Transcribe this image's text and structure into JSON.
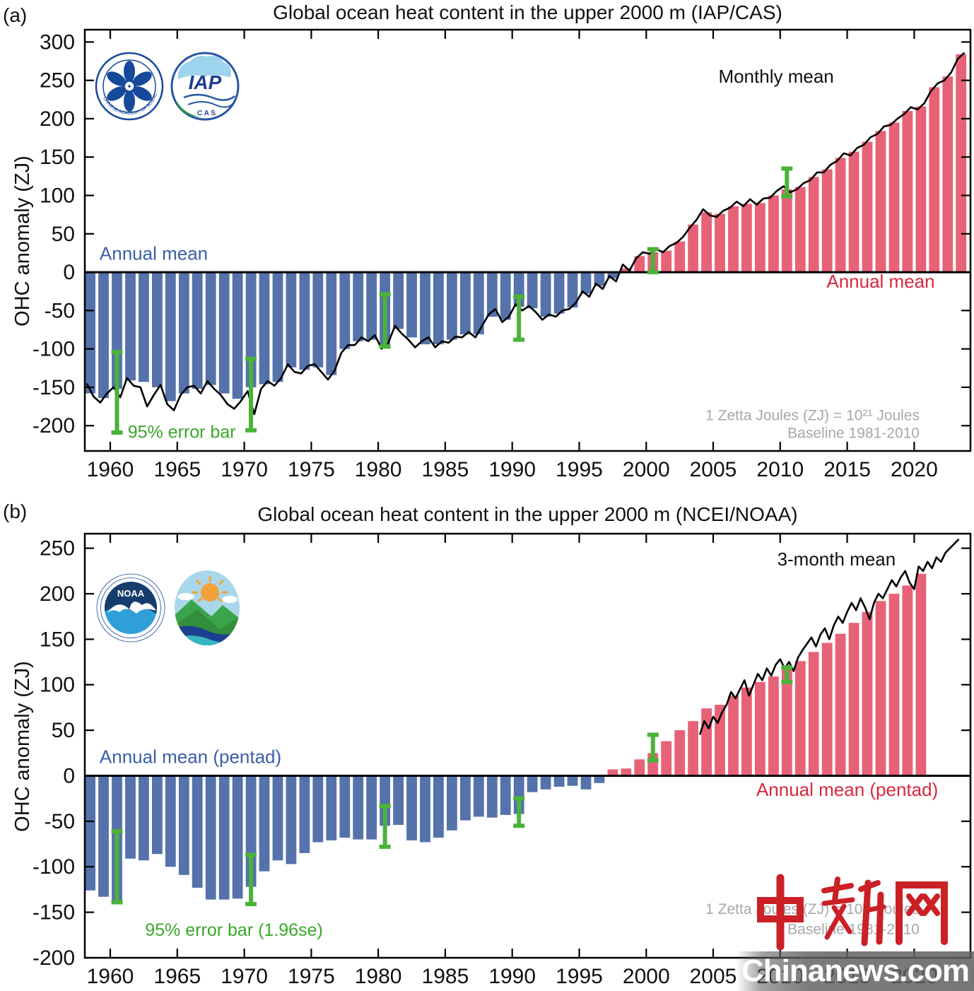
{
  "watermark": {
    "logo_text": "中新网",
    "site_text": "Chinanews.com",
    "logo_color": "#cb2026",
    "site_text_color": "#ffffff"
  },
  "chart_data": [
    {
      "type": "bar",
      "panel_label": "(a)",
      "title": "Global ocean heat content in the upper 2000 m (IAP/CAS)",
      "ylabel": "OHC anomaly (ZJ)",
      "xlabel": "",
      "xlim": [
        1958.1,
        2024.2
      ],
      "ylim": [
        -233,
        316
      ],
      "grid": false,
      "legend_position": "none",
      "yticks": [
        -200,
        -150,
        -100,
        -50,
        0,
        50,
        100,
        150,
        200,
        250,
        300
      ],
      "xticks": [
        1960,
        1965,
        1970,
        1975,
        1980,
        1985,
        1990,
        1995,
        2000,
        2005,
        2010,
        2015,
        2020
      ],
      "bar_series": {
        "name": "Annual mean",
        "start_year": 1958,
        "negative_color": "#5572ab",
        "positive_color": "#e76277",
        "values": [
          -158,
          -164,
          -152,
          -141,
          -143,
          -150,
          -168,
          -158,
          -152,
          -147,
          -158,
          -165,
          -150,
          -146,
          -143,
          -124,
          -127,
          -124,
          -134,
          -100,
          -90,
          -88,
          -97,
          -74,
          -85,
          -94,
          -94,
          -88,
          -81,
          -81,
          -58,
          -62,
          -45,
          -47,
          -58,
          -54,
          -46,
          -28,
          -18,
          -8,
          5,
          21,
          26,
          28,
          40,
          62,
          78,
          76,
          86,
          89,
          90,
          100,
          108,
          111,
          124,
          134,
          149,
          157,
          170,
          184,
          195,
          210,
          216,
          241,
          255,
          284
        ]
      },
      "line_series": {
        "name": "Monthly mean",
        "color": "#000000",
        "x_start": 1958.25,
        "x_step": 0.5,
        "values": [
          -145,
          -162,
          -170,
          -158,
          -150,
          -163,
          -138,
          -148,
          -150,
          -175,
          -160,
          -147,
          -172,
          -180,
          -160,
          -150,
          -148,
          -158,
          -142,
          -152,
          -160,
          -172,
          -178,
          -168,
          -155,
          -185,
          -152,
          -142,
          -148,
          -138,
          -120,
          -130,
          -132,
          -122,
          -120,
          -130,
          -140,
          -128,
          -105,
          -95,
          -95,
          -85,
          -90,
          -82,
          -100,
          -92,
          -70,
          -80,
          -88,
          -98,
          -90,
          -85,
          -98,
          -90,
          -92,
          -84,
          -85,
          -78,
          -85,
          -70,
          -55,
          -48,
          -65,
          -58,
          -42,
          -50,
          -44,
          -52,
          -62,
          -55,
          -58,
          -50,
          -48,
          -40,
          -25,
          -32,
          -15,
          -22,
          -5,
          -12,
          10,
          2,
          18,
          26,
          24,
          30,
          26,
          34,
          38,
          46,
          58,
          68,
          82,
          74,
          72,
          80,
          84,
          92,
          86,
          95,
          88,
          96,
          97,
          106,
          112,
          104,
          108,
          116,
          120,
          130,
          130,
          140,
          145,
          155,
          152,
          162,
          166,
          176,
          180,
          190,
          192,
          200,
          206,
          215,
          212,
          220,
          236,
          246,
          250,
          260,
          278,
          286
        ]
      },
      "error_bars": {
        "label": "95% error bar",
        "color": "#4bb23a",
        "points": [
          {
            "x": 1960.5,
            "y0": -209,
            "y1": -104
          },
          {
            "x": 1970.5,
            "y0": -206,
            "y1": -113
          },
          {
            "x": 1980.5,
            "y0": -97,
            "y1": -29
          },
          {
            "x": 1990.5,
            "y0": -88,
            "y1": -32
          },
          {
            "x": 2000.5,
            "y0": 0,
            "y1": 30
          },
          {
            "x": 2010.5,
            "y0": 99,
            "y1": 135
          }
        ]
      },
      "annotations": [
        {
          "text": "Monthly mean",
          "x": 2009.7,
          "y": 247,
          "color": "#111111",
          "anchor": "middle",
          "size": 26
        },
        {
          "text": "Annual mean",
          "x": 1959.2,
          "y": 16,
          "color": "#3a5ea8",
          "anchor": "start",
          "size": 26
        },
        {
          "text": "Annual mean",
          "x": 2017.5,
          "y": -20,
          "color": "#d8283c",
          "anchor": "middle",
          "size": 26
        },
        {
          "text": "95% error bar",
          "x": 1961.3,
          "y": -216,
          "color": "#3aa82a",
          "anchor": "start",
          "size": 25
        },
        {
          "text": "1 Zetta Joules (ZJ) = 10²¹ Joules",
          "x": 2020.4,
          "y": -193,
          "color": "#a8a8a8",
          "anchor": "end",
          "size": 21
        },
        {
          "text": "Baseline 1981-2010",
          "x": 2020.4,
          "y": -216,
          "color": "#a8a8a8",
          "anchor": "end",
          "size": 21
        }
      ],
      "logos": [
        {
          "name": "cas-logo",
          "label": "CHINESE ACADEMY OF SCIENCES"
        },
        {
          "name": "iap-logo",
          "label": "IAP",
          "sublabel": "C A S"
        }
      ]
    },
    {
      "type": "bar",
      "panel_label": "(b)",
      "title": "Global ocean heat content in the upper 2000 m (NCEI/NOAA)",
      "ylabel": "OHC anomaly (ZJ)",
      "xlabel": "",
      "xlim": [
        1958.1,
        2024.2
      ],
      "ylim": [
        -200,
        266
      ],
      "grid": false,
      "legend_position": "none",
      "yticks": [
        -200,
        -150,
        -100,
        -50,
        0,
        50,
        100,
        150,
        200,
        250
      ],
      "xticks": [
        1960,
        1965,
        1970,
        1975,
        1980,
        1985,
        1990,
        1995,
        2000,
        2005,
        2010,
        2015,
        2020
      ],
      "bar_series": {
        "name": "Annual mean (pentad)",
        "start_year": 1958,
        "negative_color": "#5572ab",
        "positive_color": "#e76277",
        "values": [
          -126,
          -133,
          -139,
          -91,
          -93,
          -86,
          -100,
          -109,
          -123,
          -136,
          -136,
          -135,
          -122,
          -105,
          -93,
          -97,
          -85,
          -73,
          -71,
          -68,
          -70,
          -70,
          -55,
          -54,
          -71,
          -73,
          -68,
          -60,
          -49,
          -45,
          -46,
          -43,
          -42,
          -18,
          -15,
          -12,
          -11,
          -15,
          -8,
          7,
          8,
          18,
          25,
          38,
          50,
          60,
          74,
          78,
          88,
          97,
          103,
          109,
          117,
          126,
          136,
          146,
          156,
          168,
          180,
          192,
          200,
          209,
          222
        ]
      },
      "line_series": {
        "name": "3-month mean",
        "color": "#000000",
        "x_start": 2004.0,
        "x_step": 0.3333,
        "values": [
          45,
          60,
          52,
          65,
          58,
          70,
          78,
          92,
          85,
          95,
          105,
          88,
          100,
          112,
          105,
          118,
          110,
          122,
          128,
          118,
          125,
          115,
          130,
          138,
          145,
          152,
          142,
          155,
          162,
          150,
          165,
          175,
          168,
          180,
          190,
          182,
          195,
          185,
          172,
          190,
          200,
          195,
          205,
          215,
          208,
          218,
          225,
          212,
          205,
          230,
          225,
          235,
          228,
          240,
          235,
          245,
          250,
          255,
          260
        ]
      },
      "error_bars": {
        "label": "95% error bar (1.96se)",
        "color": "#4bb23a",
        "points": [
          {
            "x": 1960.5,
            "y0": -139,
            "y1": -61
          },
          {
            "x": 1970.5,
            "y0": -141,
            "y1": -87
          },
          {
            "x": 1980.5,
            "y0": -78,
            "y1": -33
          },
          {
            "x": 1990.5,
            "y0": -55,
            "y1": -25
          },
          {
            "x": 2000.5,
            "y0": 17,
            "y1": 45
          },
          {
            "x": 2010.5,
            "y0": 103,
            "y1": 119
          }
        ]
      },
      "annotations": [
        {
          "text": "3-month mean",
          "x": 2014.2,
          "y": 231,
          "color": "#111111",
          "anchor": "middle",
          "size": 26
        },
        {
          "text": "Annual mean (pentad)",
          "x": 1959.2,
          "y": 14,
          "color": "#3a5ea8",
          "anchor": "start",
          "size": 26
        },
        {
          "text": "Annual mean (pentad)",
          "x": 2015.0,
          "y": -22,
          "color": "#d8283c",
          "anchor": "middle",
          "size": 26
        },
        {
          "text": "95% error bar (1.96se)",
          "x": 1962.6,
          "y": -176,
          "color": "#3aa82a",
          "anchor": "start",
          "size": 25
        },
        {
          "text": "1 Zetta Joules (ZJ) = 10²¹ Joules",
          "x": 2020.4,
          "y": -152,
          "color": "#a8a8a8",
          "anchor": "end",
          "size": 21
        },
        {
          "text": "Baseline 1981-2010",
          "x": 2020.4,
          "y": -174,
          "color": "#a8a8a8",
          "anchor": "end",
          "size": 21
        }
      ],
      "logos": [
        {
          "name": "noaa-logo",
          "label": "NOAA"
        },
        {
          "name": "ncei-logo",
          "label": ""
        }
      ]
    }
  ]
}
